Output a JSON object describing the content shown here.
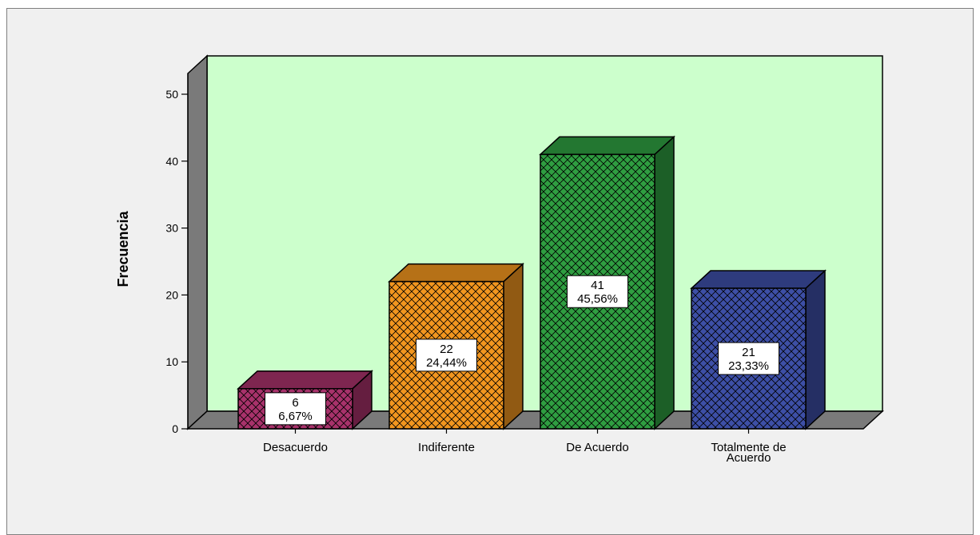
{
  "chart_data": {
    "type": "bar",
    "style": "3d",
    "title": "",
    "xlabel": "",
    "ylabel": "Frecuencia",
    "ylim": [
      0,
      50
    ],
    "yticks": [
      "0",
      "10",
      "20",
      "30",
      "40",
      "50"
    ],
    "categories": [
      {
        "label_lines": [
          "Desacuerdo"
        ],
        "value": 6,
        "percent_label": "6,67%",
        "color": "#a8326b"
      },
      {
        "label_lines": [
          "Indiferente"
        ],
        "value": 22,
        "percent_label": "24,44%",
        "color": "#f2961f"
      },
      {
        "label_lines": [
          "De Acuerdo"
        ],
        "value": 41,
        "percent_label": "45,56%",
        "color": "#2f9e41"
      },
      {
        "label_lines": [
          "Totalmente de",
          "Acuerdo"
        ],
        "value": 21,
        "percent_label": "23,33%",
        "color": "#3d4fa6"
      }
    ],
    "back_wall_color": "#ccffcc",
    "side_wall_color": "#7a7a7a",
    "floor_color": "#7a7a7a",
    "legend": "none",
    "grid": false
  }
}
